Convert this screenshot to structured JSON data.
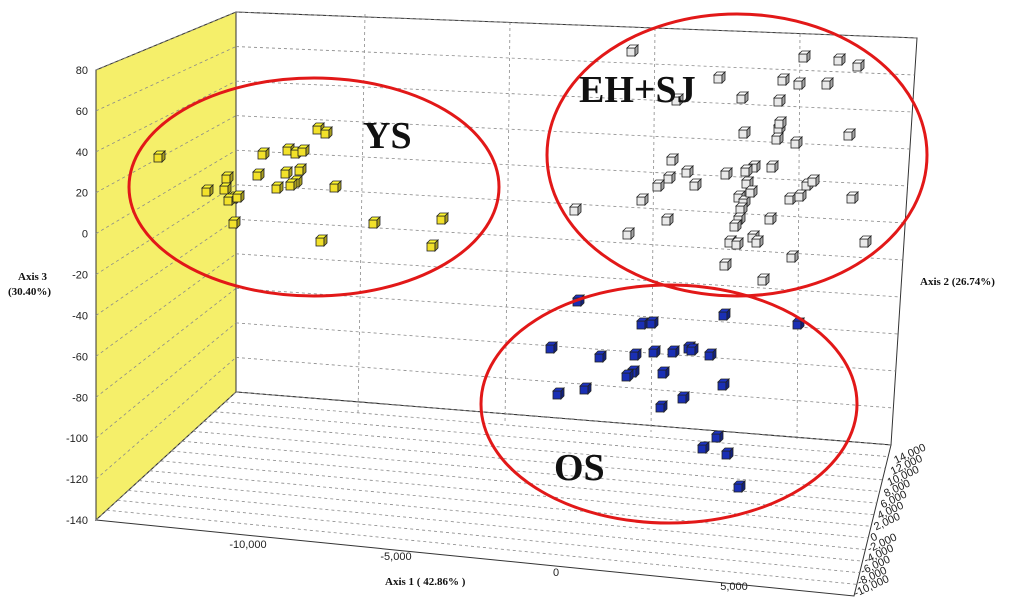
{
  "chart_data": {
    "type": "scatter3d",
    "title": "",
    "axes": {
      "x": {
        "label": "Axis 1  ( 42.86% )",
        "ticks": [
          "-10,000",
          "-5,000",
          "0",
          "5,000"
        ],
        "tick_values": [
          -10000,
          -5000,
          0,
          5000
        ]
      },
      "y": {
        "label": "Axis 2 (26.74%)",
        "ticks": [
          "14,000",
          "12,000",
          "10,000",
          "8,000",
          "6,000",
          "4,000",
          "2,000",
          "0",
          "-2,000",
          "-4,000",
          "-6,000",
          "-8,000",
          "-10,000"
        ]
      },
      "z": {
        "label_line1": "Axis 3",
        "label_line2": "(30.40%)",
        "ticks": [
          "80",
          "60",
          "40",
          "20",
          "0",
          "-20",
          "-40",
          "-60",
          "-80",
          "-100",
          "-120",
          "-140"
        ],
        "tick_values": [
          80,
          60,
          40,
          20,
          0,
          -20,
          -40,
          -60,
          -80,
          -100,
          -120,
          -140
        ],
        "range": [
          -140,
          80
        ]
      }
    },
    "groups": [
      {
        "name": "YS",
        "label": "YS",
        "color": "#f2e12a",
        "points": [
          [
            158,
            157
          ],
          [
            206,
            191
          ],
          [
            226,
            178
          ],
          [
            224,
            189
          ],
          [
            233,
            198
          ],
          [
            228,
            200
          ],
          [
            237,
            197
          ],
          [
            233,
            223
          ],
          [
            262,
            154
          ],
          [
            257,
            175
          ],
          [
            287,
            150
          ],
          [
            295,
            153
          ],
          [
            302,
            151
          ],
          [
            285,
            173
          ],
          [
            295,
            182
          ],
          [
            290,
            185
          ],
          [
            276,
            188
          ],
          [
            299,
            170
          ],
          [
            317,
            129
          ],
          [
            325,
            133
          ],
          [
            334,
            187
          ],
          [
            373,
            223
          ],
          [
            441,
            219
          ],
          [
            320,
            241
          ],
          [
            431,
            246
          ]
        ]
      },
      {
        "name": "EH+SJ",
        "label": "EH+SJ",
        "color": "#e9e9e9",
        "points": [
          [
            631,
            51
          ],
          [
            574,
            210
          ],
          [
            627,
            234
          ],
          [
            641,
            200
          ],
          [
            676,
            100
          ],
          [
            671,
            160
          ],
          [
            668,
            178
          ],
          [
            686,
            172
          ],
          [
            694,
            185
          ],
          [
            666,
            220
          ],
          [
            718,
            78
          ],
          [
            738,
            197
          ],
          [
            741,
            98
          ],
          [
            743,
            133
          ],
          [
            753,
            167
          ],
          [
            746,
            183
          ],
          [
            743,
            202
          ],
          [
            740,
            209
          ],
          [
            738,
            219
          ],
          [
            734,
            226
          ],
          [
            729,
            242
          ],
          [
            736,
            244
          ],
          [
            752,
            237
          ],
          [
            756,
            242
          ],
          [
            762,
            280
          ],
          [
            769,
            219
          ],
          [
            771,
            167
          ],
          [
            776,
            139
          ],
          [
            778,
            128
          ],
          [
            779,
            123
          ],
          [
            778,
            101
          ],
          [
            782,
            80
          ],
          [
            798,
            84
          ],
          [
            803,
            57
          ],
          [
            838,
            60
          ],
          [
            857,
            66
          ],
          [
            826,
            84
          ],
          [
            848,
            135
          ],
          [
            851,
            198
          ],
          [
            864,
            242
          ],
          [
            795,
            143
          ],
          [
            789,
            199
          ],
          [
            799,
            196
          ],
          [
            806,
            185
          ],
          [
            812,
            181
          ],
          [
            791,
            257
          ],
          [
            724,
            265
          ],
          [
            745,
            171
          ],
          [
            750,
            192
          ],
          [
            725,
            174
          ],
          [
            657,
            186
          ]
        ]
      },
      {
        "name": "OS",
        "label": "OS",
        "color": "#1a2fb5",
        "points": [
          [
            577,
            301
          ],
          [
            641,
            324
          ],
          [
            651,
            323
          ],
          [
            723,
            315
          ],
          [
            797,
            324
          ],
          [
            550,
            348
          ],
          [
            599,
            357
          ],
          [
            634,
            355
          ],
          [
            653,
            352
          ],
          [
            672,
            352
          ],
          [
            688,
            348
          ],
          [
            691,
            350
          ],
          [
            709,
            355
          ],
          [
            662,
            373
          ],
          [
            632,
            372
          ],
          [
            626,
            376
          ],
          [
            584,
            389
          ],
          [
            557,
            394
          ],
          [
            682,
            398
          ],
          [
            722,
            385
          ],
          [
            660,
            407
          ],
          [
            716,
            437
          ],
          [
            702,
            448
          ],
          [
            726,
            454
          ],
          [
            738,
            487
          ]
        ]
      }
    ]
  }
}
